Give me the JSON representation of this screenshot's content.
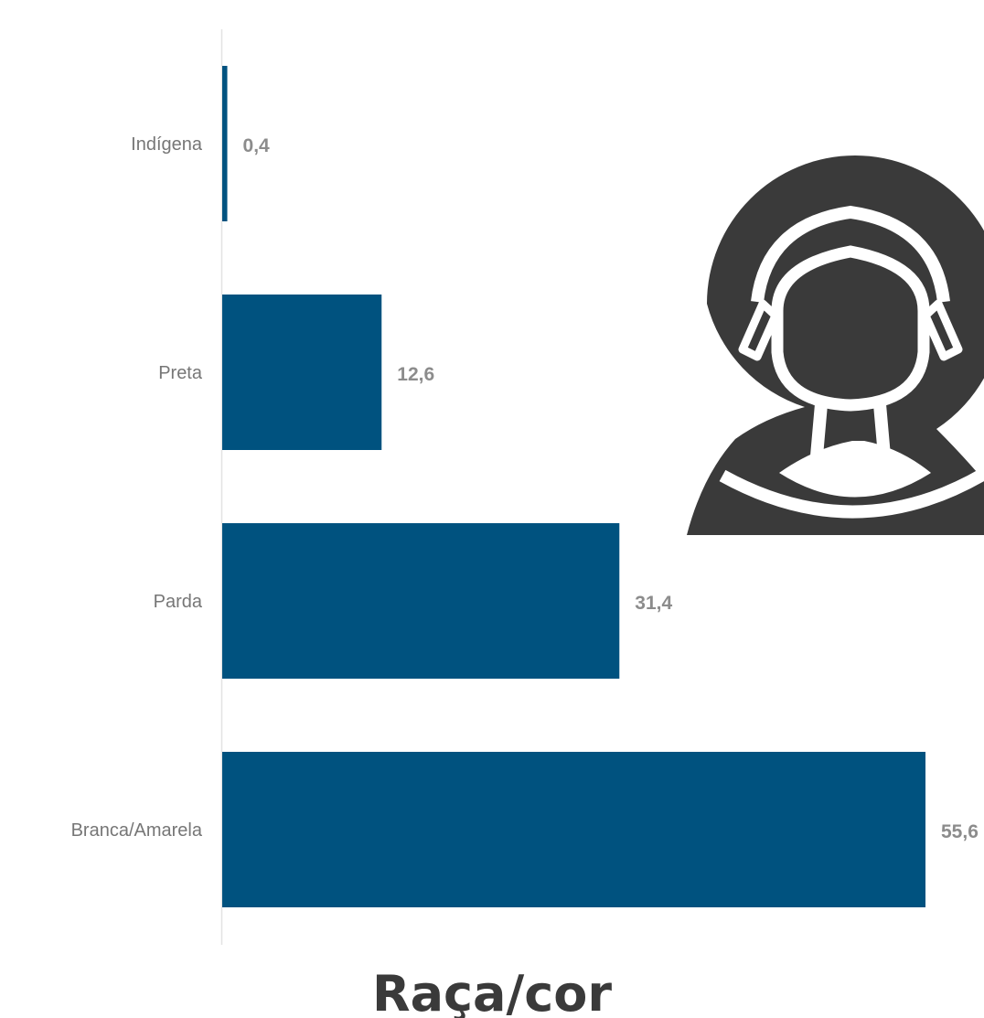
{
  "chart_data": {
    "type": "bar",
    "orientation": "horizontal",
    "title": "Raça/cor",
    "categories": [
      "Indígena",
      "Preta",
      "Parda",
      "Branca/Amarela"
    ],
    "values": [
      0.4,
      12.6,
      31.4,
      55.6
    ],
    "value_labels": [
      "0,4",
      "12,6",
      "31,4",
      "55,6"
    ],
    "xlim": [
      0,
      55.6
    ],
    "grid": false,
    "legend": "none"
  },
  "colors": {
    "bar": "#00527f",
    "axis": "#e3e3e3",
    "category_text": "#767676",
    "value_text": "#8c8c8c",
    "title_text": "#3a3a3a",
    "icon_fill": "#3a3a3a"
  },
  "icon": "person-with-headband-icon"
}
